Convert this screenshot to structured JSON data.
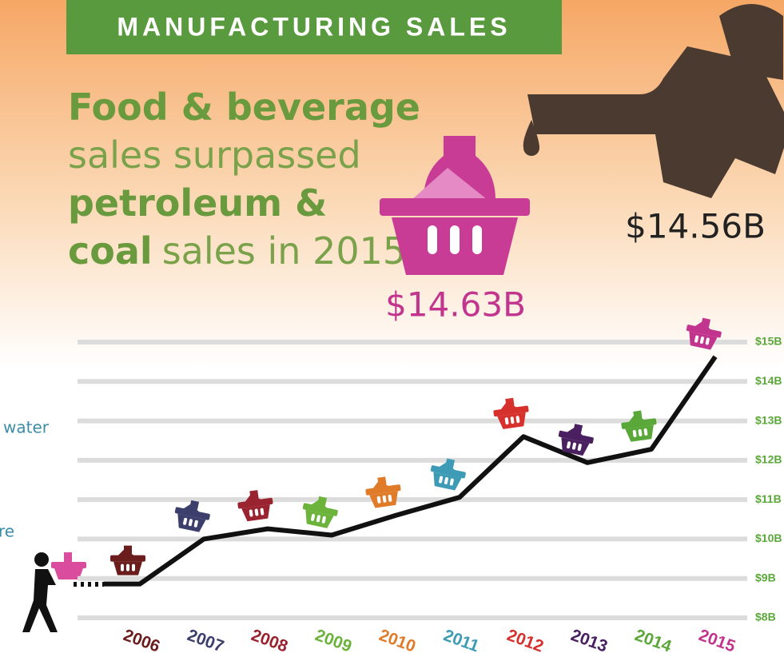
{
  "chart_data": {
    "type": "line",
    "title": "MANUFACTURING SALES",
    "headline": [
      "Food & beverage",
      "sales surpassed",
      "petroleum &",
      "coal",
      "sales in 2015."
    ],
    "annotations": {
      "food": "$14.63B",
      "petroleum": "$14.56B",
      "side": [
        "water",
        "re"
      ]
    },
    "categories": [
      "2006",
      "2007",
      "2008",
      "2009",
      "2010",
      "2011",
      "2012",
      "2013",
      "2014",
      "2015"
    ],
    "values": [
      8.86,
      10.0,
      10.26,
      10.1,
      10.6,
      11.06,
      12.6,
      11.94,
      12.28,
      14.63
    ],
    "colors": [
      "#6b1d1d",
      "#3c3f6b",
      "#9a2330",
      "#6bb33a",
      "#e07b2a",
      "#3d9bb5",
      "#d6312c",
      "#4a2060",
      "#5aa83a",
      "#c2358e"
    ],
    "color": "#111111",
    "ylim": [
      8,
      15
    ],
    "yticks": [
      {
        "value": 8,
        "label": "$8B"
      },
      {
        "value": 9,
        "label": "$9B"
      },
      {
        "value": 10,
        "label": "$10B"
      },
      {
        "value": 11,
        "label": "$11B"
      },
      {
        "value": 12,
        "label": "$12B"
      },
      {
        "value": 13,
        "label": "$13B"
      },
      {
        "value": 14,
        "label": "$14B"
      },
      {
        "value": 15,
        "label": "$15B"
      }
    ],
    "grid": true
  }
}
